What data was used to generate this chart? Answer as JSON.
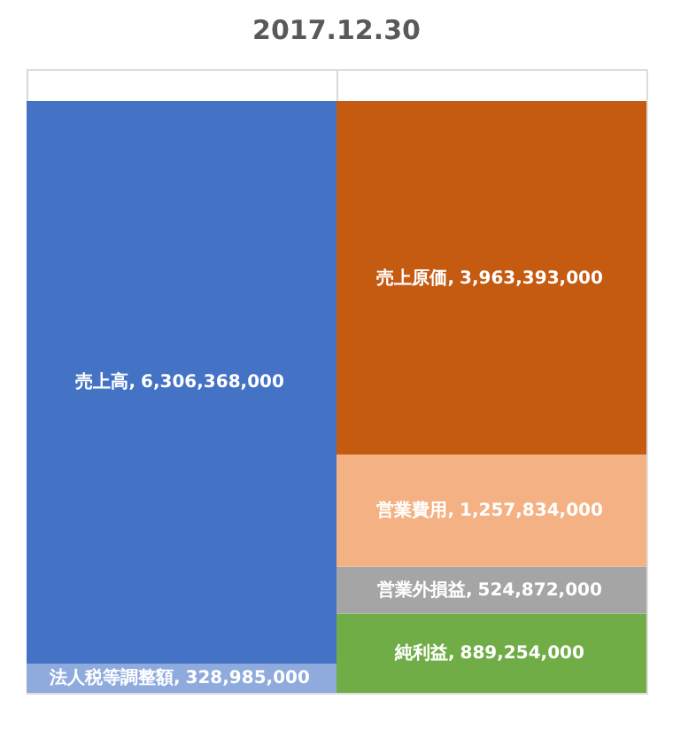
{
  "chart_data": {
    "type": "bar",
    "title": "2017.12.30",
    "categories": [
      null,
      null
    ],
    "stacked": true,
    "data_labels": true,
    "tick_labels": false,
    "grid": "x",
    "legend": false,
    "series": [
      {
        "name": "法人税等調整額,",
        "color": "#8faadc",
        "values": [
          328985000,
          null
        ],
        "value_labels": [
          "328,985,000",
          null
        ]
      },
      {
        "name": "売上高,",
        "color": "#4472c4",
        "values": [
          6306368000,
          null
        ],
        "value_labels": [
          "6,306,368,000",
          null
        ]
      },
      {
        "name": "純利益,",
        "color": "#70ad47",
        "values": [
          null,
          889254000
        ],
        "value_labels": [
          null,
          "889,254,000"
        ]
      },
      {
        "name": "営業外損益,",
        "color": "#a5a5a5",
        "values": [
          null,
          524872000
        ],
        "value_labels": [
          null,
          "524,872,000"
        ]
      },
      {
        "name": "営業費用,",
        "color": "#f4b183",
        "values": [
          null,
          1257834000
        ],
        "value_labels": [
          null,
          "1,257,834,000"
        ]
      },
      {
        "name": "売上原価,",
        "color": "#c55a11",
        "values": [
          null,
          3963393000
        ],
        "value_labels": [
          null,
          "3,963,393,000"
        ]
      }
    ]
  }
}
